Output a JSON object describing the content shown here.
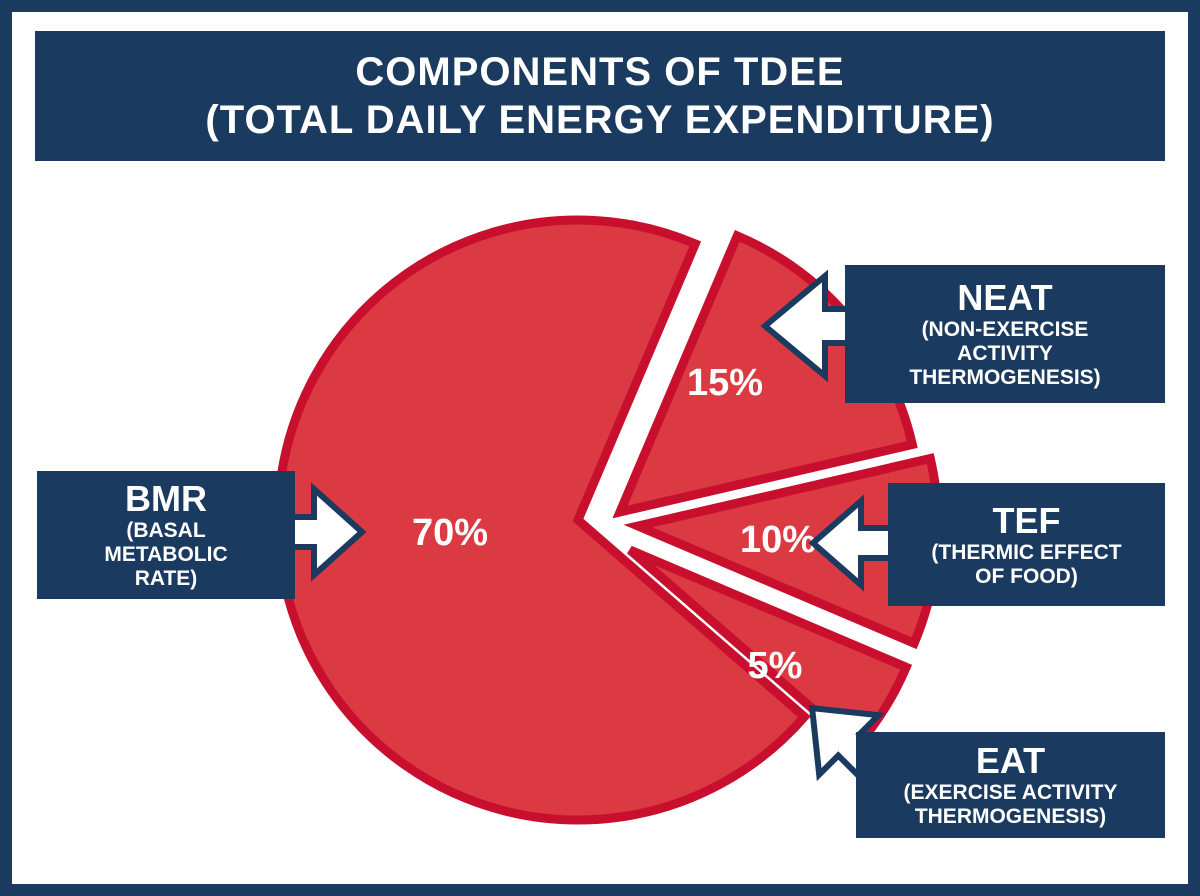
{
  "title": {
    "line1": "COMPONENTS OF TDEE",
    "line2": "(TOTAL DAILY ENERGY EXPENDITURE)"
  },
  "colors": {
    "navy": "#1b3a5f",
    "slice_fill": "#dc3a43",
    "slice_stroke": "#c8102e",
    "text": "#ffffff"
  },
  "chart_data": {
    "type": "pie",
    "title": "COMPONENTS OF TDEE (TOTAL DAILY ENERGY EXPENDITURE)",
    "exploded": true,
    "slices": [
      {
        "key": "bmr",
        "value": 70,
        "label": "70%",
        "abbr": "BMR",
        "full": "(BASAL\nMETABOLIC\nRATE)"
      },
      {
        "key": "neat",
        "value": 15,
        "label": "15%",
        "abbr": "NEAT",
        "full": "(NON-EXERCISE\nACTIVITY\nTHERMOGENESIS)"
      },
      {
        "key": "tef",
        "value": 10,
        "label": "10%",
        "abbr": "TEF",
        "full": "(THERMIC EFFECT\nOF FOOD)"
      },
      {
        "key": "eat",
        "value": 5,
        "label": "5%",
        "abbr": "EAT",
        "full": "(EXERCISE ACTIVITY\nTHERMOGENESIS)"
      }
    ]
  }
}
